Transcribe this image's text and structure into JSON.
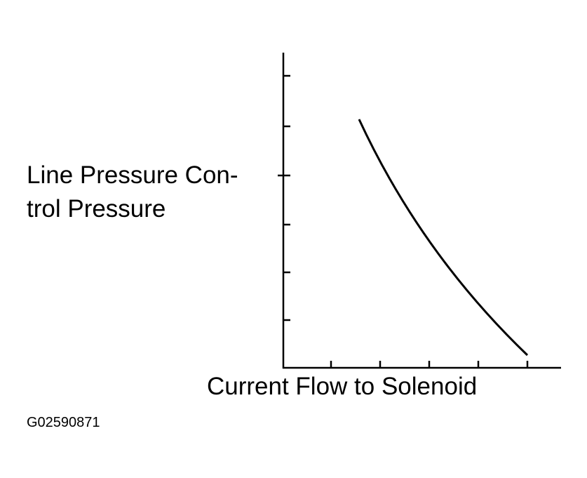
{
  "y_label": [
    "Line Pressure Con-",
    "trol Pressure"
  ],
  "x_label": "Current Flow to Solenoid",
  "figure_id": "G02590871"
}
